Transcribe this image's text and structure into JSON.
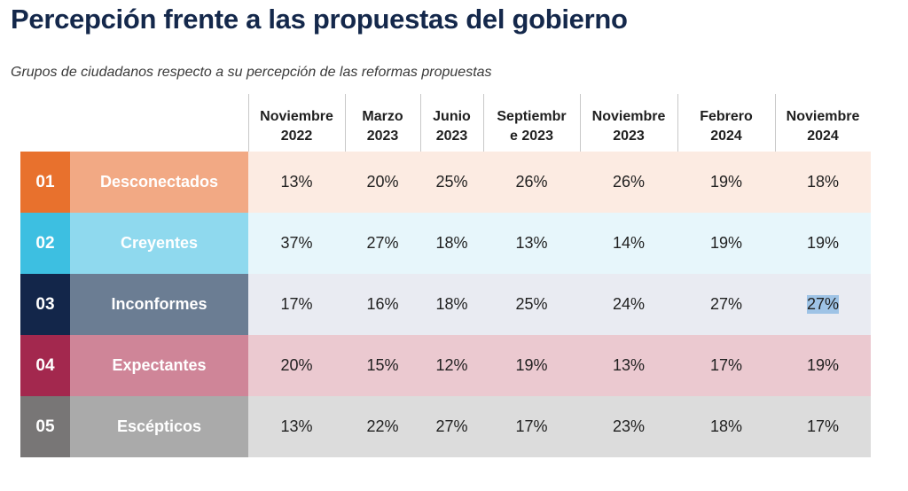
{
  "title": "Percepción frente a las propuestas del gobierno",
  "subtitle": "Grupos de ciudadanos respecto a su percepción de las reformas propuestas",
  "chart_data": {
    "type": "table",
    "columns": [
      "Noviembre\n2022",
      "Marzo\n2023",
      "Junio\n2023",
      "Septiembr\ne 2023",
      "Noviembre\n2023",
      "Febrero\n2024",
      "Noviembre\n2024"
    ],
    "rows": [
      {
        "num": "01",
        "label": "Desconectados",
        "values": [
          "13%",
          "20%",
          "25%",
          "26%",
          "26%",
          "19%",
          "18%"
        ],
        "num_color": "#e8712d",
        "label_color": "#f2a984",
        "row_color": "#fcebe2"
      },
      {
        "num": "02",
        "label": "Creyentes",
        "values": [
          "37%",
          "27%",
          "18%",
          "13%",
          "14%",
          "19%",
          "19%"
        ],
        "num_color": "#3dbfe1",
        "label_color": "#8fd9ee",
        "row_color": "#e7f6fb"
      },
      {
        "num": "03",
        "label": "Inconformes",
        "values": [
          "17%",
          "16%",
          "18%",
          "25%",
          "24%",
          "27%",
          "27%"
        ],
        "num_color": "#13264a",
        "label_color": "#6b7d93",
        "row_color": "#e9ebf2"
      },
      {
        "num": "04",
        "label": "Expectantes",
        "values": [
          "20%",
          "15%",
          "12%",
          "19%",
          "13%",
          "17%",
          "19%"
        ],
        "num_color": "#a3284e",
        "label_color": "#cf8598",
        "row_color": "#ebc9d0"
      },
      {
        "num": "05",
        "label": "Escépticos",
        "values": [
          "13%",
          "22%",
          "27%",
          "17%",
          "23%",
          "18%",
          "17%"
        ],
        "num_color": "#787676",
        "label_color": "#aaaaaa",
        "row_color": "#dcdcdc"
      }
    ]
  }
}
